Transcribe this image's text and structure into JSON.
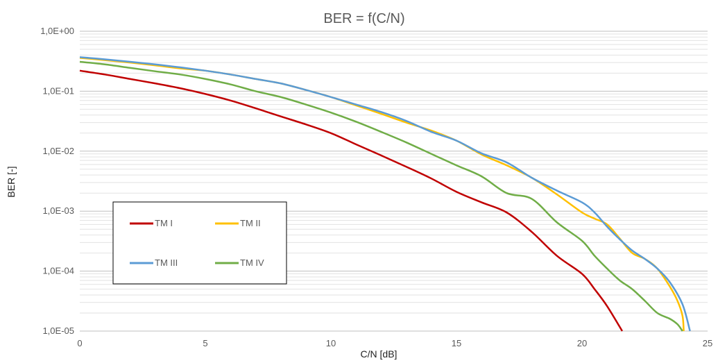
{
  "chart_data": {
    "type": "line",
    "title": "BER = f(C/N)",
    "xlabel": "C/N [dB]",
    "ylabel": "BER [-]",
    "y_scale": "log",
    "xlim": [
      0,
      25
    ],
    "ylim": [
      1e-05,
      1
    ],
    "x_ticks": [
      0,
      5,
      10,
      15,
      20,
      25
    ],
    "x_tick_labels": [
      "0",
      "5",
      "10",
      "15",
      "20",
      "25"
    ],
    "y_ticks": [
      1,
      0.1,
      0.01,
      0.001,
      0.0001,
      1e-05
    ],
    "y_tick_labels": [
      "1,0E+00",
      "1,0E-01",
      "1,0E-02",
      "1,0E-03",
      "1,0E-04",
      "1,0E-05"
    ],
    "grid": "major and minor horizontal gridlines",
    "legend_position": "lower-left, boxed, two columns",
    "series": [
      {
        "name": "TM I",
        "color": "#c00000",
        "x": [
          0,
          1,
          2,
          3,
          4,
          5,
          6,
          7,
          8,
          9,
          10,
          11,
          12,
          13,
          14,
          15,
          16,
          17,
          18,
          19,
          20,
          20.5,
          21,
          21.6
        ],
        "y": [
          0.22,
          0.19,
          0.16,
          0.135,
          0.112,
          0.09,
          0.07,
          0.052,
          0.038,
          0.028,
          0.02,
          0.013,
          0.0085,
          0.0055,
          0.0035,
          0.0021,
          0.0014,
          0.00095,
          0.00045,
          0.00018,
          9e-05,
          5e-05,
          2.6e-05,
          1e-05
        ]
      },
      {
        "name": "TM II",
        "color": "#ffc000",
        "x": [
          0,
          1,
          2,
          3,
          4,
          5,
          6,
          7,
          8,
          9,
          10,
          11,
          12,
          13,
          14,
          15,
          16,
          17,
          18,
          19,
          20,
          20.5,
          21,
          21.5,
          22,
          22.5,
          23,
          23.5,
          23.8,
          24.0,
          24.05
        ],
        "y": [
          0.36,
          0.33,
          0.3,
          0.27,
          0.24,
          0.22,
          0.19,
          0.16,
          0.135,
          0.105,
          0.08,
          0.058,
          0.042,
          0.03,
          0.022,
          0.015,
          0.0088,
          0.0058,
          0.0036,
          0.0019,
          0.00095,
          0.00075,
          0.0006,
          0.00035,
          0.0002,
          0.00016,
          0.00011,
          5.5e-05,
          3.2e-05,
          1.8e-05,
          1e-05
        ]
      },
      {
        "name": "TM III",
        "color": "#5b9bd5",
        "x": [
          0,
          1,
          2,
          3,
          4,
          5,
          6,
          7,
          8,
          9,
          10,
          11,
          12,
          13,
          14,
          15,
          16,
          17,
          18,
          19,
          20,
          20.5,
          21,
          21.5,
          22,
          22.5,
          23,
          23.5,
          24,
          24.3
        ],
        "y": [
          0.37,
          0.34,
          0.31,
          0.28,
          0.25,
          0.22,
          0.19,
          0.16,
          0.135,
          0.105,
          0.08,
          0.06,
          0.045,
          0.032,
          0.021,
          0.015,
          0.0092,
          0.0065,
          0.0036,
          0.0022,
          0.0014,
          0.00095,
          0.00055,
          0.00034,
          0.00022,
          0.00016,
          0.00011,
          6.5e-05,
          2.8e-05,
          1e-05
        ]
      },
      {
        "name": "TM IV",
        "color": "#70ad47",
        "x": [
          0,
          1,
          2,
          3,
          4,
          5,
          6,
          7,
          8,
          9,
          10,
          11,
          12,
          13,
          14,
          15,
          16,
          17,
          18,
          19,
          20,
          20.5,
          21,
          21.5,
          22,
          22.5,
          23,
          23.5,
          23.8,
          24.0
        ],
        "y": [
          0.31,
          0.28,
          0.245,
          0.215,
          0.19,
          0.16,
          0.13,
          0.1,
          0.08,
          0.06,
          0.044,
          0.031,
          0.021,
          0.014,
          0.009,
          0.0058,
          0.0038,
          0.002,
          0.0016,
          0.00065,
          0.00032,
          0.00018,
          0.00011,
          7e-05,
          5e-05,
          3.2e-05,
          2e-05,
          1.6e-05,
          1.3e-05,
          1e-05
        ]
      }
    ]
  }
}
